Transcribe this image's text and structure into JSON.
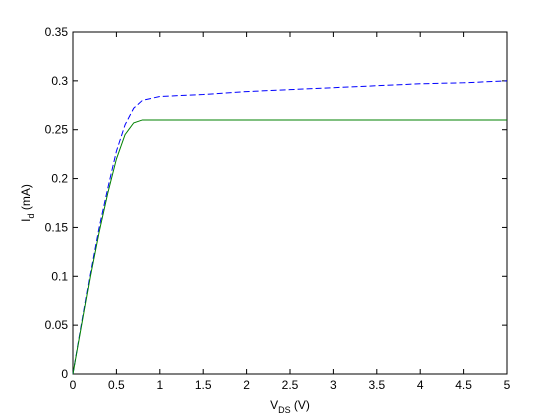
{
  "chart_data": {
    "type": "line",
    "xlabel": [
      "V",
      "DS",
      " (V)"
    ],
    "ylabel": [
      "I",
      "d",
      " (mA)"
    ],
    "x": [
      0,
      0.1,
      0.2,
      0.3,
      0.4,
      0.5,
      0.6,
      0.7,
      0.8,
      0.9,
      1,
      1.5,
      2,
      2.5,
      3,
      3.5,
      4,
      4.5,
      5
    ],
    "series": [
      {
        "color": "#0000ff",
        "dash": true,
        "values": [
          0,
          0.052,
          0.103,
          0.15,
          0.19,
          0.228,
          0.255,
          0.272,
          0.28,
          0.282,
          0.284,
          0.286,
          0.289,
          0.291,
          0.293,
          0.295,
          0.297,
          0.298,
          0.3
        ]
      },
      {
        "color": "#008000",
        "dash": false,
        "values": [
          0,
          0.05,
          0.1,
          0.145,
          0.185,
          0.22,
          0.245,
          0.257,
          0.26,
          0.26,
          0.26,
          0.26,
          0.26,
          0.26,
          0.26,
          0.26,
          0.26,
          0.26,
          0.26
        ]
      }
    ],
    "xlim": [
      0,
      5
    ],
    "xticks": [
      0,
      0.5,
      1,
      1.5,
      2,
      2.5,
      3,
      3.5,
      4,
      4.5,
      5
    ],
    "ylim": [
      0,
      0.35
    ],
    "yticks": [
      0,
      0.05,
      0.1,
      0.15,
      0.2,
      0.25,
      0.3,
      0.35
    ],
    "grid": false
  }
}
